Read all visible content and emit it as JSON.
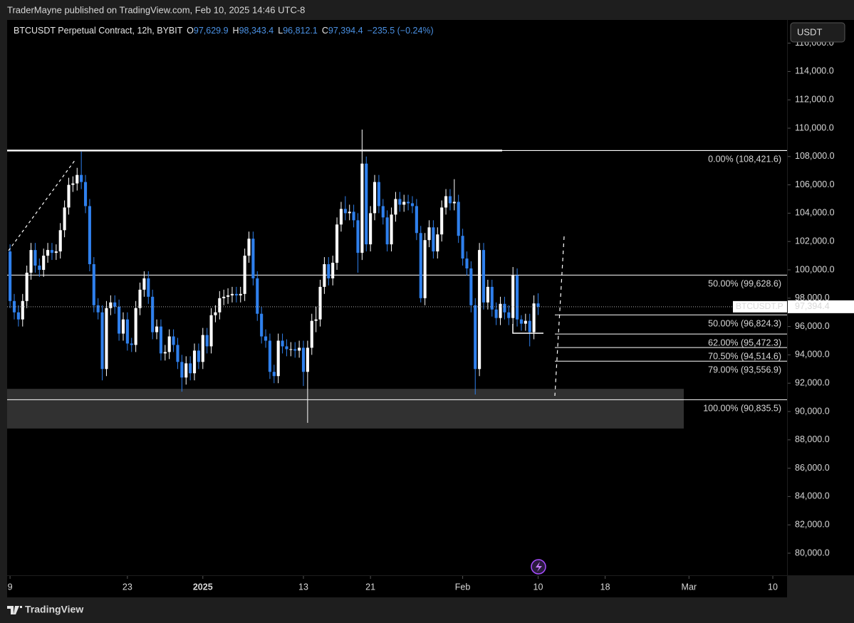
{
  "header": "TraderMayne published on TradingView.com, Feb 10, 2025 14:46 UTC-8",
  "footer": "TradingView",
  "currency_button": "USDT",
  "chart_data": {
    "type": "candlestick",
    "legend": {
      "symbol": "BTCUSDT Perpetual Contract, 12h, BYBIT",
      "o_key": "O",
      "o": "97,629.9",
      "h_key": "H",
      "h": "98,343.4",
      "l_key": "L",
      "l": "96,812.1",
      "c_key": "C",
      "c": "97,394.4",
      "change": "−235.5 (−0.24%)"
    },
    "up_color": "#ffffff",
    "down_color": "#2f80ed",
    "xlim": [
      -0.7,
      185.4
    ],
    "xticks": [
      {
        "value": 0,
        "label": "9"
      },
      {
        "value": 28,
        "label": "23"
      },
      {
        "value": 46,
        "label": "2025"
      },
      {
        "value": 70,
        "label": "13"
      },
      {
        "value": 86,
        "label": "21"
      },
      {
        "value": 108,
        "label": "Feb"
      },
      {
        "value": 126,
        "label": "10"
      },
      {
        "value": 142,
        "label": "18"
      },
      {
        "value": 162,
        "label": "Mar"
      },
      {
        "value": 182,
        "label": "10"
      }
    ],
    "ylim": [
      78440,
      117640
    ],
    "yticks": [
      {
        "value": 80000,
        "label": "80,000.0"
      },
      {
        "value": 82000,
        "label": "82,000.0"
      },
      {
        "value": 84000,
        "label": "84,000.0"
      },
      {
        "value": 86000,
        "label": "86,000.0"
      },
      {
        "value": 88000,
        "label": "88,000.0"
      },
      {
        "value": 90000,
        "label": "90,000.0"
      },
      {
        "value": 92000,
        "label": "92,000.0"
      },
      {
        "value": 94000,
        "label": "94,000.0"
      },
      {
        "value": 96000,
        "label": "96,000.0"
      },
      {
        "value": 98000,
        "label": "98,000.0"
      },
      {
        "value": 100000,
        "label": "100,000.0"
      },
      {
        "value": 102000,
        "label": "102,000.0"
      },
      {
        "value": 104000,
        "label": "104,000.0"
      },
      {
        "value": 106000,
        "label": "106,000.0"
      },
      {
        "value": 108000,
        "label": "108,000.0"
      },
      {
        "value": 110000,
        "label": "110,000.0"
      },
      {
        "value": 112000,
        "label": "112,000.0"
      },
      {
        "value": 114000,
        "label": "114,000.0"
      },
      {
        "value": 116000,
        "label": "116,000.0"
      }
    ],
    "fib_levels": [
      {
        "value": 108421.6,
        "label": "0.00% (108,421.6)"
      },
      {
        "value": 99628.6,
        "label": "50.00% (99,628.6)"
      },
      {
        "value": 96824.3,
        "label": "50.00% (96,824.3)"
      },
      {
        "value": 95472.3,
        "label": "62.00% (95,472.3)"
      },
      {
        "value": 94514.6,
        "label": "70.50% (94,514.6)"
      },
      {
        "value": 93556.9,
        "label": "79.00% (93,556.9)"
      },
      {
        "value": 90835.5,
        "label": "100.00% (90,835.5)"
      }
    ],
    "zone": [
      88800,
      91600
    ],
    "last_price": {
      "value": 97394.4,
      "label": "97,394.4"
    },
    "symbol_tag": "BTCUSDT.P",
    "candles": [
      [
        101300,
        101800,
        97300,
        97800
      ],
      [
        97800,
        98300,
        96500,
        97000
      ],
      [
        97000,
        97500,
        96000,
        96500
      ],
      [
        96500,
        98300,
        96000,
        97800
      ],
      [
        97800,
        100300,
        97300,
        99800
      ],
      [
        99800,
        101900,
        99300,
        101400
      ],
      [
        101400,
        101900,
        99800,
        100300
      ],
      [
        100300,
        100800,
        99500,
        100000
      ],
      [
        100000,
        101500,
        99500,
        101000
      ],
      [
        101000,
        101900,
        100500,
        101400
      ],
      [
        101400,
        101900,
        100700,
        101200
      ],
      [
        101200,
        101800,
        100700,
        101300
      ],
      [
        101300,
        103300,
        100800,
        102800
      ],
      [
        102800,
        104900,
        102300,
        104400
      ],
      [
        104400,
        106500,
        103900,
        106000
      ],
      [
        106000,
        106600,
        105500,
        106100
      ],
      [
        106100,
        107200,
        105600,
        106700
      ],
      [
        106700,
        108350,
        105700,
        106200
      ],
      [
        106200,
        106700,
        104000,
        104500
      ],
      [
        104500,
        105000,
        99900,
        100400
      ],
      [
        100400,
        100900,
        97000,
        97500
      ],
      [
        97500,
        98000,
        96500,
        97000
      ],
      [
        97000,
        97500,
        92200,
        93000
      ],
      [
        93000,
        97800,
        92500,
        97300
      ],
      [
        97300,
        98200,
        96800,
        97700
      ],
      [
        97700,
        98200,
        96900,
        97400
      ],
      [
        97400,
        97900,
        95000,
        95500
      ],
      [
        95500,
        97000,
        95000,
        96500
      ],
      [
        96500,
        97000,
        94300,
        94800
      ],
      [
        94800,
        95200,
        94200,
        94700
      ],
      [
        94700,
        97800,
        94200,
        97300
      ],
      [
        97300,
        99100,
        96800,
        98600
      ],
      [
        98600,
        99900,
        98100,
        99400
      ],
      [
        99400,
        99900,
        97600,
        98100
      ],
      [
        98100,
        98600,
        95100,
        95600
      ],
      [
        95600,
        96500,
        95100,
        96000
      ],
      [
        96000,
        96500,
        93600,
        94100
      ],
      [
        94100,
        94700,
        93600,
        94200
      ],
      [
        94200,
        95800,
        93700,
        95300
      ],
      [
        95300,
        95800,
        94200,
        94700
      ],
      [
        94700,
        95200,
        93000,
        93500
      ],
      [
        93500,
        94000,
        91400,
        92400
      ],
      [
        92400,
        93900,
        91900,
        93400
      ],
      [
        93400,
        93900,
        92200,
        92700
      ],
      [
        92700,
        94800,
        92200,
        94300
      ],
      [
        94300,
        94800,
        93000,
        93500
      ],
      [
        93500,
        95900,
        93000,
        95400
      ],
      [
        95400,
        95900,
        94100,
        94600
      ],
      [
        94600,
        97300,
        94100,
        96800
      ],
      [
        96800,
        97500,
        96300,
        97000
      ],
      [
        97000,
        98500,
        96500,
        98000
      ],
      [
        98000,
        98600,
        97500,
        98100
      ],
      [
        98100,
        98700,
        97600,
        98200
      ],
      [
        98200,
        98800,
        97700,
        98300
      ],
      [
        98300,
        98800,
        97700,
        98200
      ],
      [
        98200,
        98800,
        97700,
        98300
      ],
      [
        98300,
        101500,
        97800,
        101000
      ],
      [
        101000,
        102700,
        100500,
        102200
      ],
      [
        102200,
        102700,
        98900,
        99400
      ],
      [
        99400,
        99900,
        96400,
        96900
      ],
      [
        96900,
        97400,
        94800,
        95300
      ],
      [
        95300,
        95800,
        94500,
        95000
      ],
      [
        95000,
        95500,
        92300,
        92800
      ],
      [
        92800,
        93300,
        92000,
        92500
      ],
      [
        92500,
        95500,
        92000,
        95000
      ],
      [
        95000,
        95500,
        94100,
        94600
      ],
      [
        94600,
        95100,
        93900,
        94400
      ],
      [
        94400,
        94900,
        93900,
        94400
      ],
      [
        94400,
        94900,
        93800,
        94300
      ],
      [
        94300,
        95000,
        93800,
        94500
      ],
      [
        94500,
        95000,
        91800,
        92800
      ],
      [
        92800,
        95000,
        89200,
        94500
      ],
      [
        94500,
        96900,
        94000,
        96400
      ],
      [
        96400,
        97400,
        95600,
        96500
      ],
      [
        96500,
        99300,
        96000,
        98800
      ],
      [
        98800,
        100900,
        98300,
        100400
      ],
      [
        100400,
        100900,
        98900,
        99400
      ],
      [
        99400,
        101000,
        98900,
        100500
      ],
      [
        100500,
        103700,
        100000,
        103200
      ],
      [
        103200,
        104800,
        102700,
        104300
      ],
      [
        104300,
        105200,
        103500,
        104000
      ],
      [
        104000,
        104600,
        103500,
        104100
      ],
      [
        104100,
        104600,
        103000,
        103500
      ],
      [
        103500,
        104000,
        99800,
        101200
      ],
      [
        101200,
        109900,
        100700,
        107500
      ],
      [
        107500,
        108000,
        101300,
        101800
      ],
      [
        101800,
        104500,
        101300,
        104000
      ],
      [
        104000,
        106700,
        103500,
        106200
      ],
      [
        106200,
        106700,
        104000,
        104500
      ],
      [
        104500,
        105000,
        103200,
        103700
      ],
      [
        103700,
        104200,
        101300,
        101800
      ],
      [
        101800,
        104400,
        101300,
        103900
      ],
      [
        103900,
        105500,
        103400,
        105000
      ],
      [
        105000,
        105500,
        104100,
        104600
      ],
      [
        104600,
        105300,
        104100,
        104800
      ],
      [
        104800,
        105300,
        104200,
        104700
      ],
      [
        104700,
        105200,
        104000,
        104500
      ],
      [
        104500,
        105000,
        102100,
        102600
      ],
      [
        102600,
        103100,
        97700,
        98000
      ],
      [
        98000,
        102600,
        97500,
        102100
      ],
      [
        102100,
        103500,
        101600,
        103000
      ],
      [
        103000,
        103500,
        100800,
        101300
      ],
      [
        101300,
        103000,
        100800,
        102500
      ],
      [
        102500,
        104900,
        102000,
        104400
      ],
      [
        104400,
        105700,
        103900,
        105200
      ],
      [
        105200,
        105700,
        104200,
        104700
      ],
      [
        104700,
        106400,
        104200,
        104800
      ],
      [
        104800,
        105300,
        101900,
        102400
      ],
      [
        102400,
        102900,
        100300,
        100800
      ],
      [
        100800,
        101300,
        99600,
        100100
      ],
      [
        100100,
        100600,
        97000,
        97500
      ],
      [
        97500,
        98000,
        91200,
        93000
      ],
      [
        93000,
        101900,
        92500,
        101400
      ],
      [
        101400,
        101900,
        97200,
        97700
      ],
      [
        97700,
        99300,
        97200,
        98800
      ],
      [
        98800,
        99300,
        96700,
        97200
      ],
      [
        97200,
        97700,
        96100,
        96600
      ],
      [
        96600,
        98100,
        96100,
        97600
      ],
      [
        97600,
        98100,
        96500,
        97000
      ],
      [
        97000,
        97500,
        96100,
        96600
      ],
      [
        96600,
        100200,
        96100,
        99600
      ],
      [
        99600,
        100100,
        96000,
        96500
      ],
      [
        96500,
        96800,
        95700,
        96200
      ],
      [
        96200,
        96900,
        95700,
        96400
      ],
      [
        96400,
        96900,
        94600,
        95600
      ],
      [
        95600,
        98200,
        95100,
        97629.9
      ],
      [
        97629.9,
        98343.4,
        96812.1,
        97394.4
      ]
    ]
  }
}
